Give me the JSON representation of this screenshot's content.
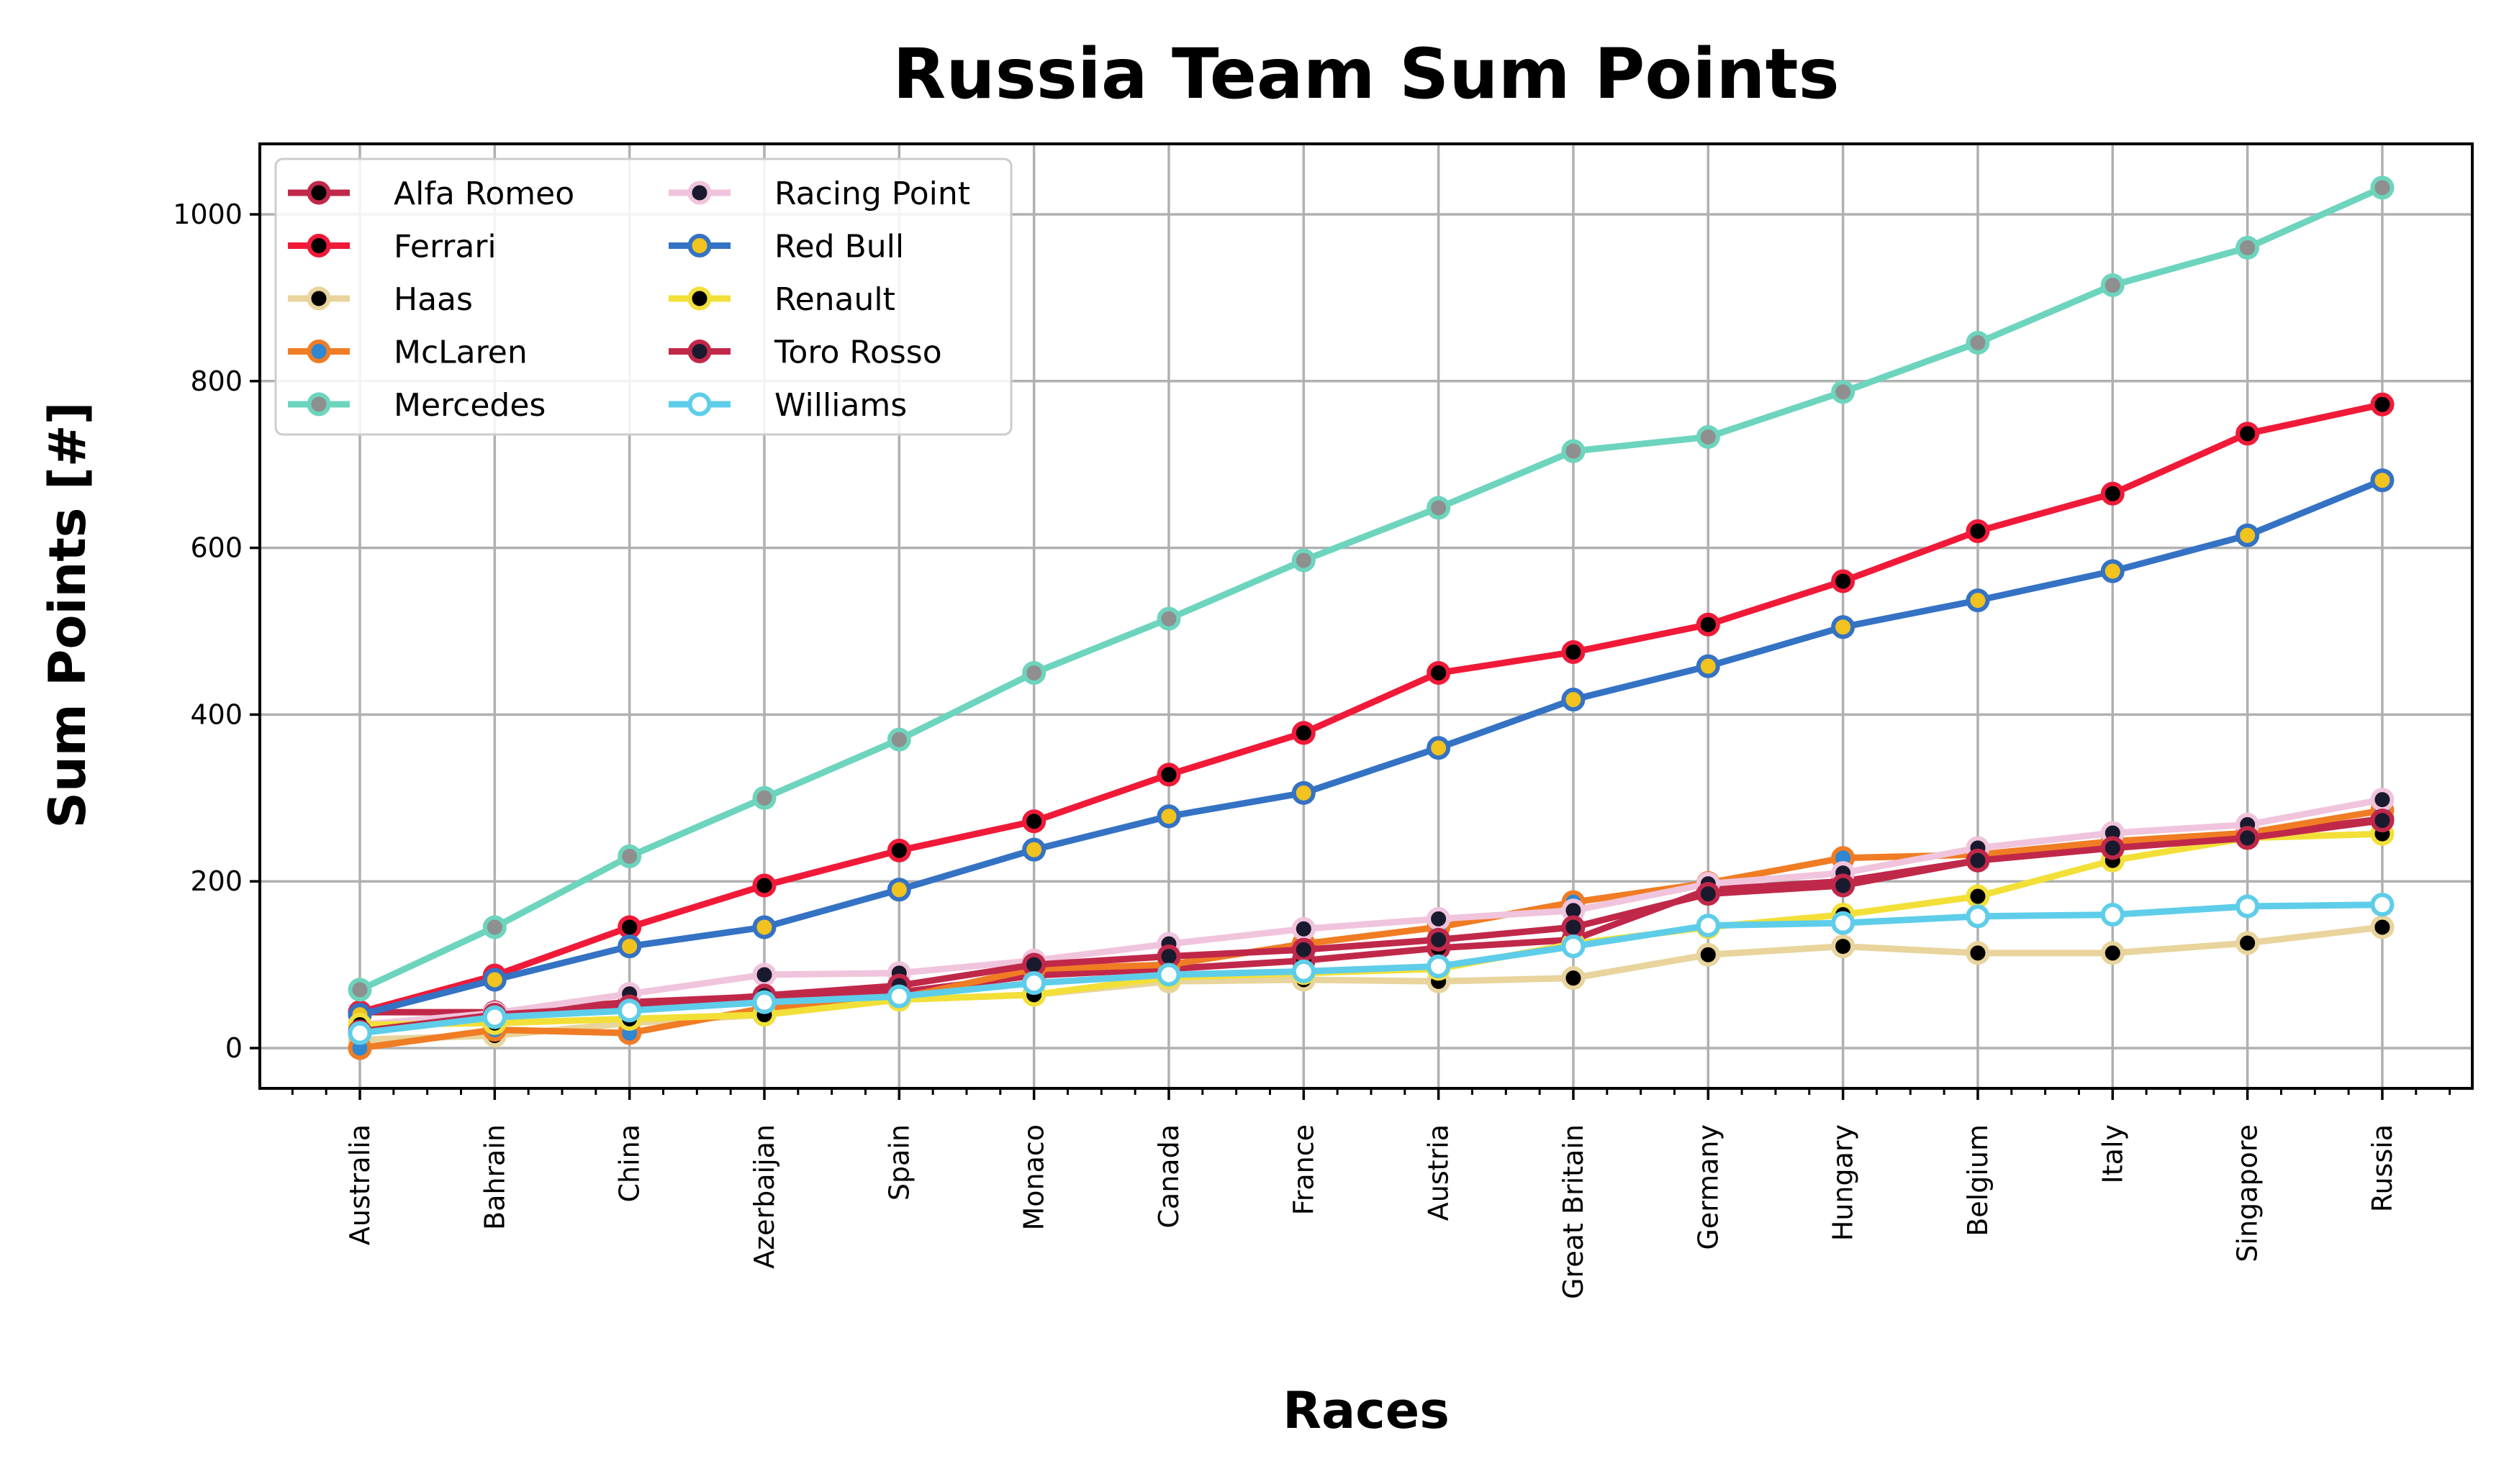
{
  "chart_data": {
    "type": "line",
    "title": "Russia Team Sum Points",
    "xlabel": "Races",
    "ylabel": "Sum Points [#]",
    "ylim": [
      -50,
      1085
    ],
    "yticks": [
      0,
      200,
      400,
      600,
      800,
      1000
    ],
    "grid": true,
    "legend_placement": "top-left",
    "categories": [
      "Australia",
      "Bahrain",
      "China",
      "Azerbaijan",
      "Spain",
      "Monaco",
      "Canada",
      "France",
      "Austria",
      "Great Britain",
      "Germany",
      "Hungary",
      "Belgium",
      "Italy",
      "Singapore",
      "Russia"
    ],
    "series": [
      {
        "name": "Alfa Romeo",
        "color": "#c0284a",
        "marker_face": "#000000",
        "marker_edge": "#c0284a",
        "values": [
          43,
          43,
          55,
          62,
          67,
          87,
          95,
          105,
          120,
          130,
          190,
          200,
          225,
          245,
          255,
          275
        ]
      },
      {
        "name": "Ferrari",
        "color": "#f01a38",
        "marker_face": "#000000",
        "marker_edge": "#f01a38",
        "values": [
          43,
          87,
          145,
          195,
          237,
          272,
          328,
          378,
          450,
          475,
          508,
          560,
          620,
          665,
          737,
          772
        ]
      },
      {
        "name": "Haas",
        "color": "#e8d49c",
        "marker_face": "#000000",
        "marker_edge": "#e8d49c",
        "values": [
          10,
          15,
          30,
          40,
          58,
          64,
          80,
          82,
          80,
          84,
          112,
          122,
          114,
          114,
          126,
          145
        ]
      },
      {
        "name": "McLaren",
        "color": "#f07c24",
        "marker_face": "#2f86d1",
        "marker_edge": "#f07c24",
        "values": [
          0,
          22,
          18,
          48,
          60,
          95,
          100,
          125,
          145,
          175,
          198,
          228,
          232,
          248,
          258,
          285
        ]
      },
      {
        "name": "Mercedes",
        "color": "#6dd4bd",
        "marker_face": "#8f8f8f",
        "marker_edge": "#6dd4bd",
        "values": [
          70,
          145,
          230,
          300,
          370,
          450,
          515,
          585,
          648,
          716,
          733,
          787,
          846,
          915,
          960,
          1032
        ]
      },
      {
        "name": "Racing Point",
        "color": "#f0c4dc",
        "marker_face": "#1a1a2e",
        "marker_edge": "#f0c4dc",
        "values": [
          28,
          42,
          65,
          88,
          90,
          105,
          125,
          143,
          155,
          165,
          197,
          210,
          240,
          258,
          268,
          298
        ]
      },
      {
        "name": "Red Bull",
        "color": "#3472c4",
        "marker_face": "#f2c21e",
        "marker_edge": "#3472c4",
        "values": [
          40,
          82,
          122,
          145,
          190,
          238,
          278,
          306,
          360,
          418,
          458,
          505,
          537,
          572,
          615,
          681
        ]
      },
      {
        "name": "Renault",
        "color": "#f2e038",
        "marker_face": "#000000",
        "marker_edge": "#f2e038",
        "values": [
          28,
          30,
          35,
          40,
          58,
          64,
          85,
          90,
          95,
          125,
          145,
          160,
          182,
          225,
          252,
          257
        ]
      },
      {
        "name": "Toro Rosso",
        "color": "#c0284a",
        "marker_face": "#1a1a2e",
        "marker_edge": "#c0284a",
        "values": [
          20,
          40,
          50,
          63,
          75,
          100,
          110,
          118,
          130,
          145,
          185,
          195,
          225,
          240,
          252,
          273
        ]
      },
      {
        "name": "Williams",
        "color": "#5ecde9",
        "marker_face": "#ffffff",
        "marker_edge": "#5ecde9",
        "values": [
          18,
          37,
          45,
          55,
          62,
          78,
          88,
          92,
          98,
          122,
          147,
          150,
          158,
          160,
          170,
          172
        ]
      }
    ]
  }
}
